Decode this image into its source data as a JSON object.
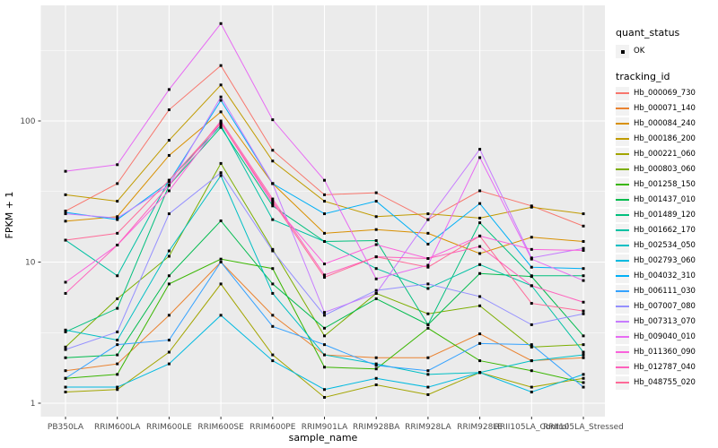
{
  "chart_data": {
    "type": "line",
    "title": "",
    "xlabel": "sample_name",
    "ylabel": "FPKM + 1",
    "y_scale": "log10",
    "ylim": [
      0.8,
      660
    ],
    "grid": true,
    "legend_position": "right",
    "y_ticks": [
      1,
      10,
      100
    ],
    "y_minor_ticks": [
      3.162,
      31.62,
      316.2
    ],
    "x_categories": [
      "PB350LA",
      "RRIM600LA",
      "RRIM600LE",
      "RRIM600SE",
      "RRIM600PE",
      "RRIM901LA",
      "RRIM928BA",
      "RRIM928LA",
      "RRIM928LE",
      "RRII105LA_Control",
      "RRII105LA_Stressed"
    ],
    "quant_legend": {
      "title": "quant_status",
      "ok_label": "OK",
      "marker_color": "#000000"
    },
    "series_legend_title": "tracking_id",
    "marker": {
      "shape": "square",
      "size": 3,
      "color": "#000000"
    },
    "series": [
      {
        "name": "Hb_000069_730",
        "color": "#F8766D",
        "values": [
          23,
          36,
          120,
          247,
          62,
          30,
          31,
          20,
          32,
          25,
          18
        ]
      },
      {
        "name": "Hb_000071_140",
        "color": "#EA8331",
        "values": [
          1.7,
          1.9,
          4.2,
          10,
          4.2,
          2.2,
          2.1,
          2.1,
          3.1,
          2.0,
          2.1
        ]
      },
      {
        "name": "Hb_000084_240",
        "color": "#D89000",
        "values": [
          19.5,
          21,
          57,
          116,
          36,
          16,
          17,
          16,
          11.5,
          15,
          14
        ]
      },
      {
        "name": "Hb_000186_200",
        "color": "#C09B00",
        "values": [
          30,
          27,
          73,
          180,
          52,
          27,
          21,
          22,
          20.5,
          24.5,
          22
        ]
      },
      {
        "name": "Hb_000221_060",
        "color": "#A3A500",
        "values": [
          1.2,
          1.25,
          2.3,
          7,
          2.2,
          1.1,
          1.35,
          1.15,
          1.65,
          1.3,
          1.5
        ]
      },
      {
        "name": "Hb_000803_060",
        "color": "#7CAE00",
        "values": [
          2.5,
          5.5,
          11,
          50,
          12.3,
          3.0,
          6.0,
          4.3,
          4.9,
          2.5,
          2.6
        ]
      },
      {
        "name": "Hb_001258_150",
        "color": "#39B600",
        "values": [
          1.5,
          1.6,
          7,
          10.5,
          9,
          1.8,
          1.75,
          3.4,
          2.0,
          1.7,
          1.4
        ]
      },
      {
        "name": "Hb_001437_010",
        "color": "#00BB4E",
        "values": [
          2.1,
          2.2,
          8,
          19.6,
          7,
          3.4,
          5.5,
          3.6,
          8.3,
          7.9,
          3.0
        ]
      },
      {
        "name": "Hb_001489_120",
        "color": "#00BF7D",
        "values": [
          3.2,
          4.7,
          35,
          90,
          25,
          14,
          14.2,
          3.6,
          19,
          8.0,
          8.0
        ]
      },
      {
        "name": "Hb_001662_170",
        "color": "#00C1A3",
        "values": [
          14.3,
          8,
          38,
          93,
          20,
          14,
          9,
          6.5,
          9.6,
          6.8,
          2.3
        ]
      },
      {
        "name": "Hb_002534_050",
        "color": "#00BFC4",
        "values": [
          3.3,
          2.8,
          12,
          41,
          6,
          2.2,
          1.9,
          1.6,
          1.65,
          2.0,
          2.2
        ]
      },
      {
        "name": "Hb_002793_060",
        "color": "#00BAE0",
        "values": [
          1.3,
          1.3,
          1.9,
          4.2,
          2.0,
          1.25,
          1.5,
          1.3,
          1.65,
          1.2,
          1.6
        ]
      },
      {
        "name": "Hb_004032_310",
        "color": "#00B0F6",
        "values": [
          22.5,
          20,
          37,
          140,
          36,
          22,
          27,
          13.4,
          26,
          9.2,
          9
        ]
      },
      {
        "name": "Hb_006111_030",
        "color": "#35A2FF",
        "values": [
          1.5,
          2.6,
          2.8,
          10,
          3.5,
          2.6,
          1.85,
          1.7,
          2.65,
          2.6,
          1.3
        ]
      },
      {
        "name": "Hb_007007_080",
        "color": "#9590FF",
        "values": [
          2.4,
          3.2,
          22,
          43,
          12,
          4.2,
          6.3,
          7.0,
          5.7,
          3.6,
          4.3
        ]
      },
      {
        "name": "Hb_007313_070",
        "color": "#C77CFF",
        "values": [
          22,
          20.5,
          35,
          148,
          36,
          4.4,
          6,
          20,
          63,
          10.7,
          12.5
        ]
      },
      {
        "name": "Hb_009040_010",
        "color": "#E76BF3",
        "values": [
          44,
          49,
          167,
          490,
          102,
          38,
          7.6,
          9.5,
          55,
          10.5,
          7.4
        ]
      },
      {
        "name": "Hb_011360_090",
        "color": "#FA62DB",
        "values": [
          7.2,
          13.2,
          32,
          97,
          26,
          9.7,
          13.3,
          10.6,
          15.3,
          12.3,
          12.1
        ]
      },
      {
        "name": "Hb_012787_040",
        "color": "#FF62BC",
        "values": [
          6.0,
          13.2,
          35,
          100,
          28,
          8.1,
          10.9,
          10.6,
          12.9,
          6.8,
          5.2
        ]
      },
      {
        "name": "Hb_048755_020",
        "color": "#FF6A98",
        "values": [
          14.3,
          16,
          38,
          97,
          27,
          7.8,
          10.9,
          9.2,
          15.3,
          5.1,
          4.5
        ]
      }
    ]
  },
  "style": {
    "panel_bg": "#EBEBEB",
    "grid_color": "#FFFFFF",
    "axis_text_color": "#4D4D4D",
    "key_bg": "#F2F2F2"
  }
}
